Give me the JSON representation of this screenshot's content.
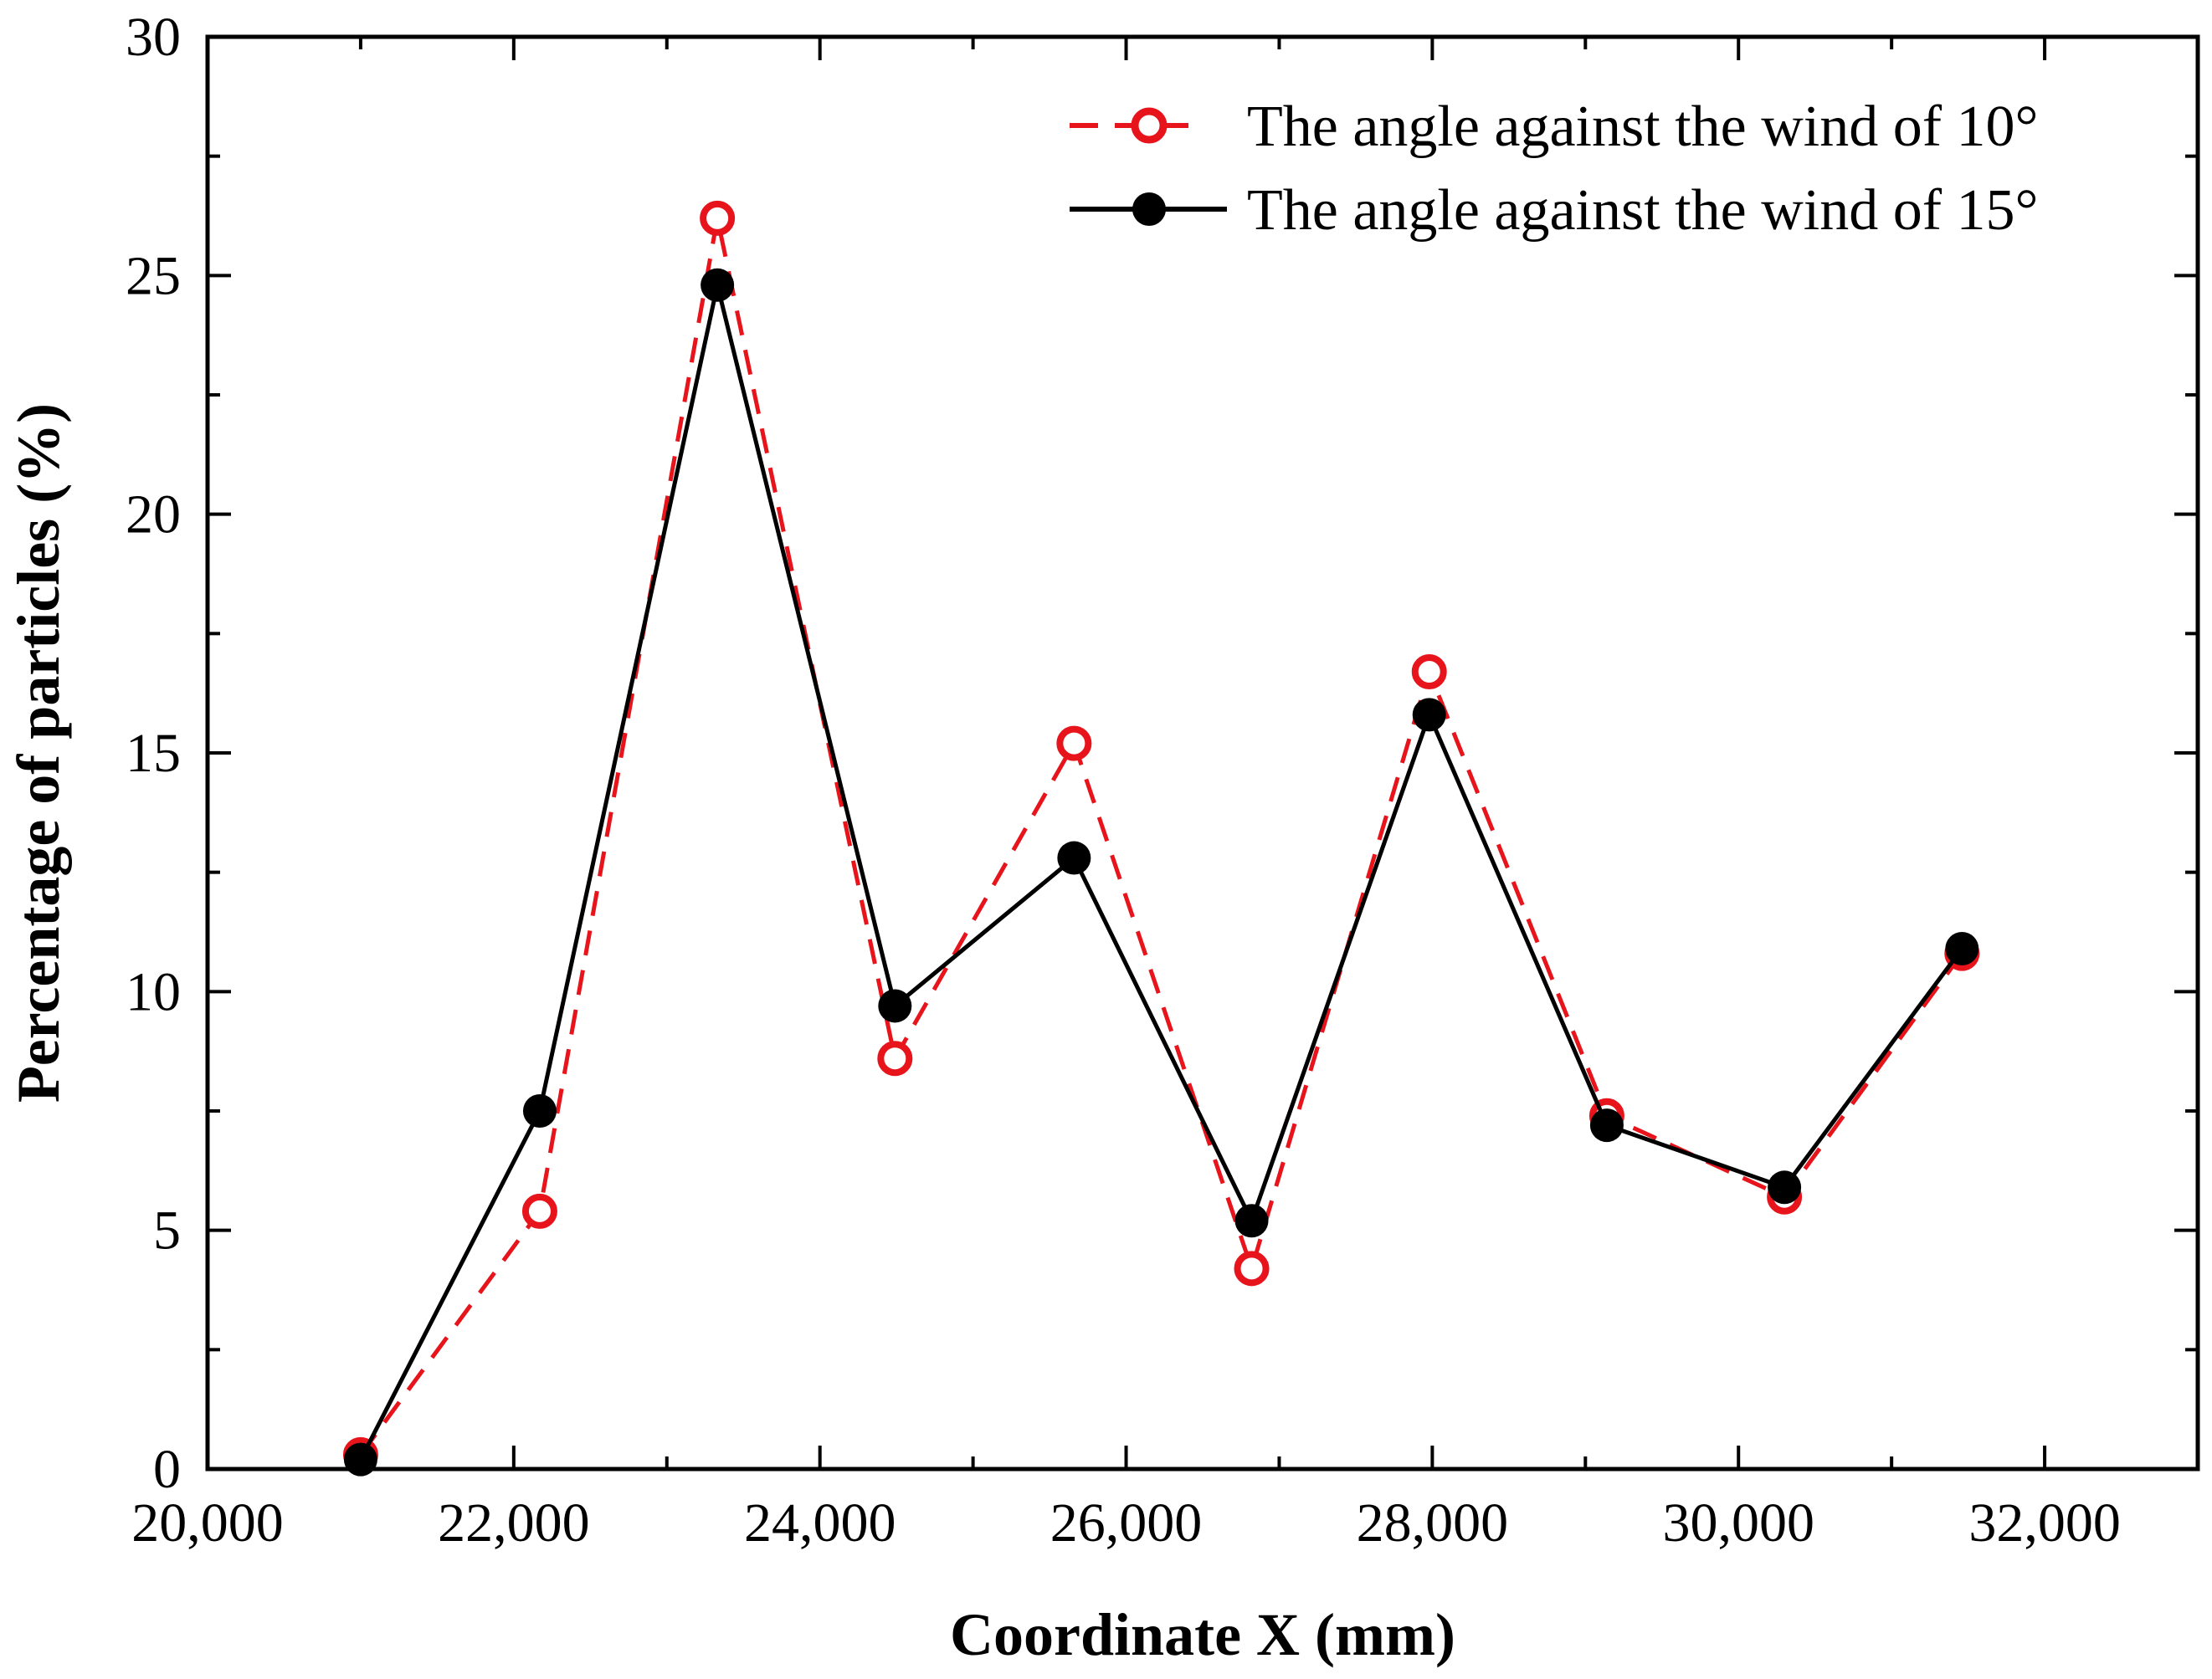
{
  "chart_data": {
    "type": "line",
    "title": "",
    "xlabel": "Coordinate X (mm)",
    "ylabel": "Percentage of particles (%)",
    "xlim": [
      20000,
      33000
    ],
    "ylim": [
      0,
      30
    ],
    "x_ticks": [
      20000,
      22000,
      24000,
      26000,
      28000,
      30000,
      32000
    ],
    "x_tick_labels": [
      "20,000",
      "22,000",
      "24,000",
      "26,000",
      "28,000",
      "30,000",
      "32,000"
    ],
    "y_ticks": [
      0,
      5,
      10,
      15,
      20,
      25,
      30
    ],
    "y_tick_labels": [
      "0",
      "5",
      "10",
      "15",
      "20",
      "25",
      "30"
    ],
    "grid": false,
    "legend_position": "top-right",
    "series": [
      {
        "name": "The angle against the wind of 10°",
        "color": "#e8141b",
        "line_style": "dashed",
        "marker": "open-circle",
        "x": [
          21000,
          22170,
          23330,
          24490,
          25660,
          26820,
          27980,
          29140,
          30300,
          31460
        ],
        "values": [
          0.3,
          5.4,
          26.2,
          8.6,
          15.2,
          4.2,
          16.7,
          7.4,
          5.7,
          10.8
        ]
      },
      {
        "name": "The angle against the wind of 15°",
        "color": "#000000",
        "line_style": "solid",
        "marker": "filled-circle",
        "x": [
          21000,
          22170,
          23330,
          24490,
          25660,
          26820,
          27980,
          29140,
          30300,
          31460
        ],
        "values": [
          0.2,
          7.5,
          24.8,
          9.7,
          12.8,
          5.2,
          15.8,
          7.2,
          5.9,
          10.9
        ]
      }
    ]
  }
}
